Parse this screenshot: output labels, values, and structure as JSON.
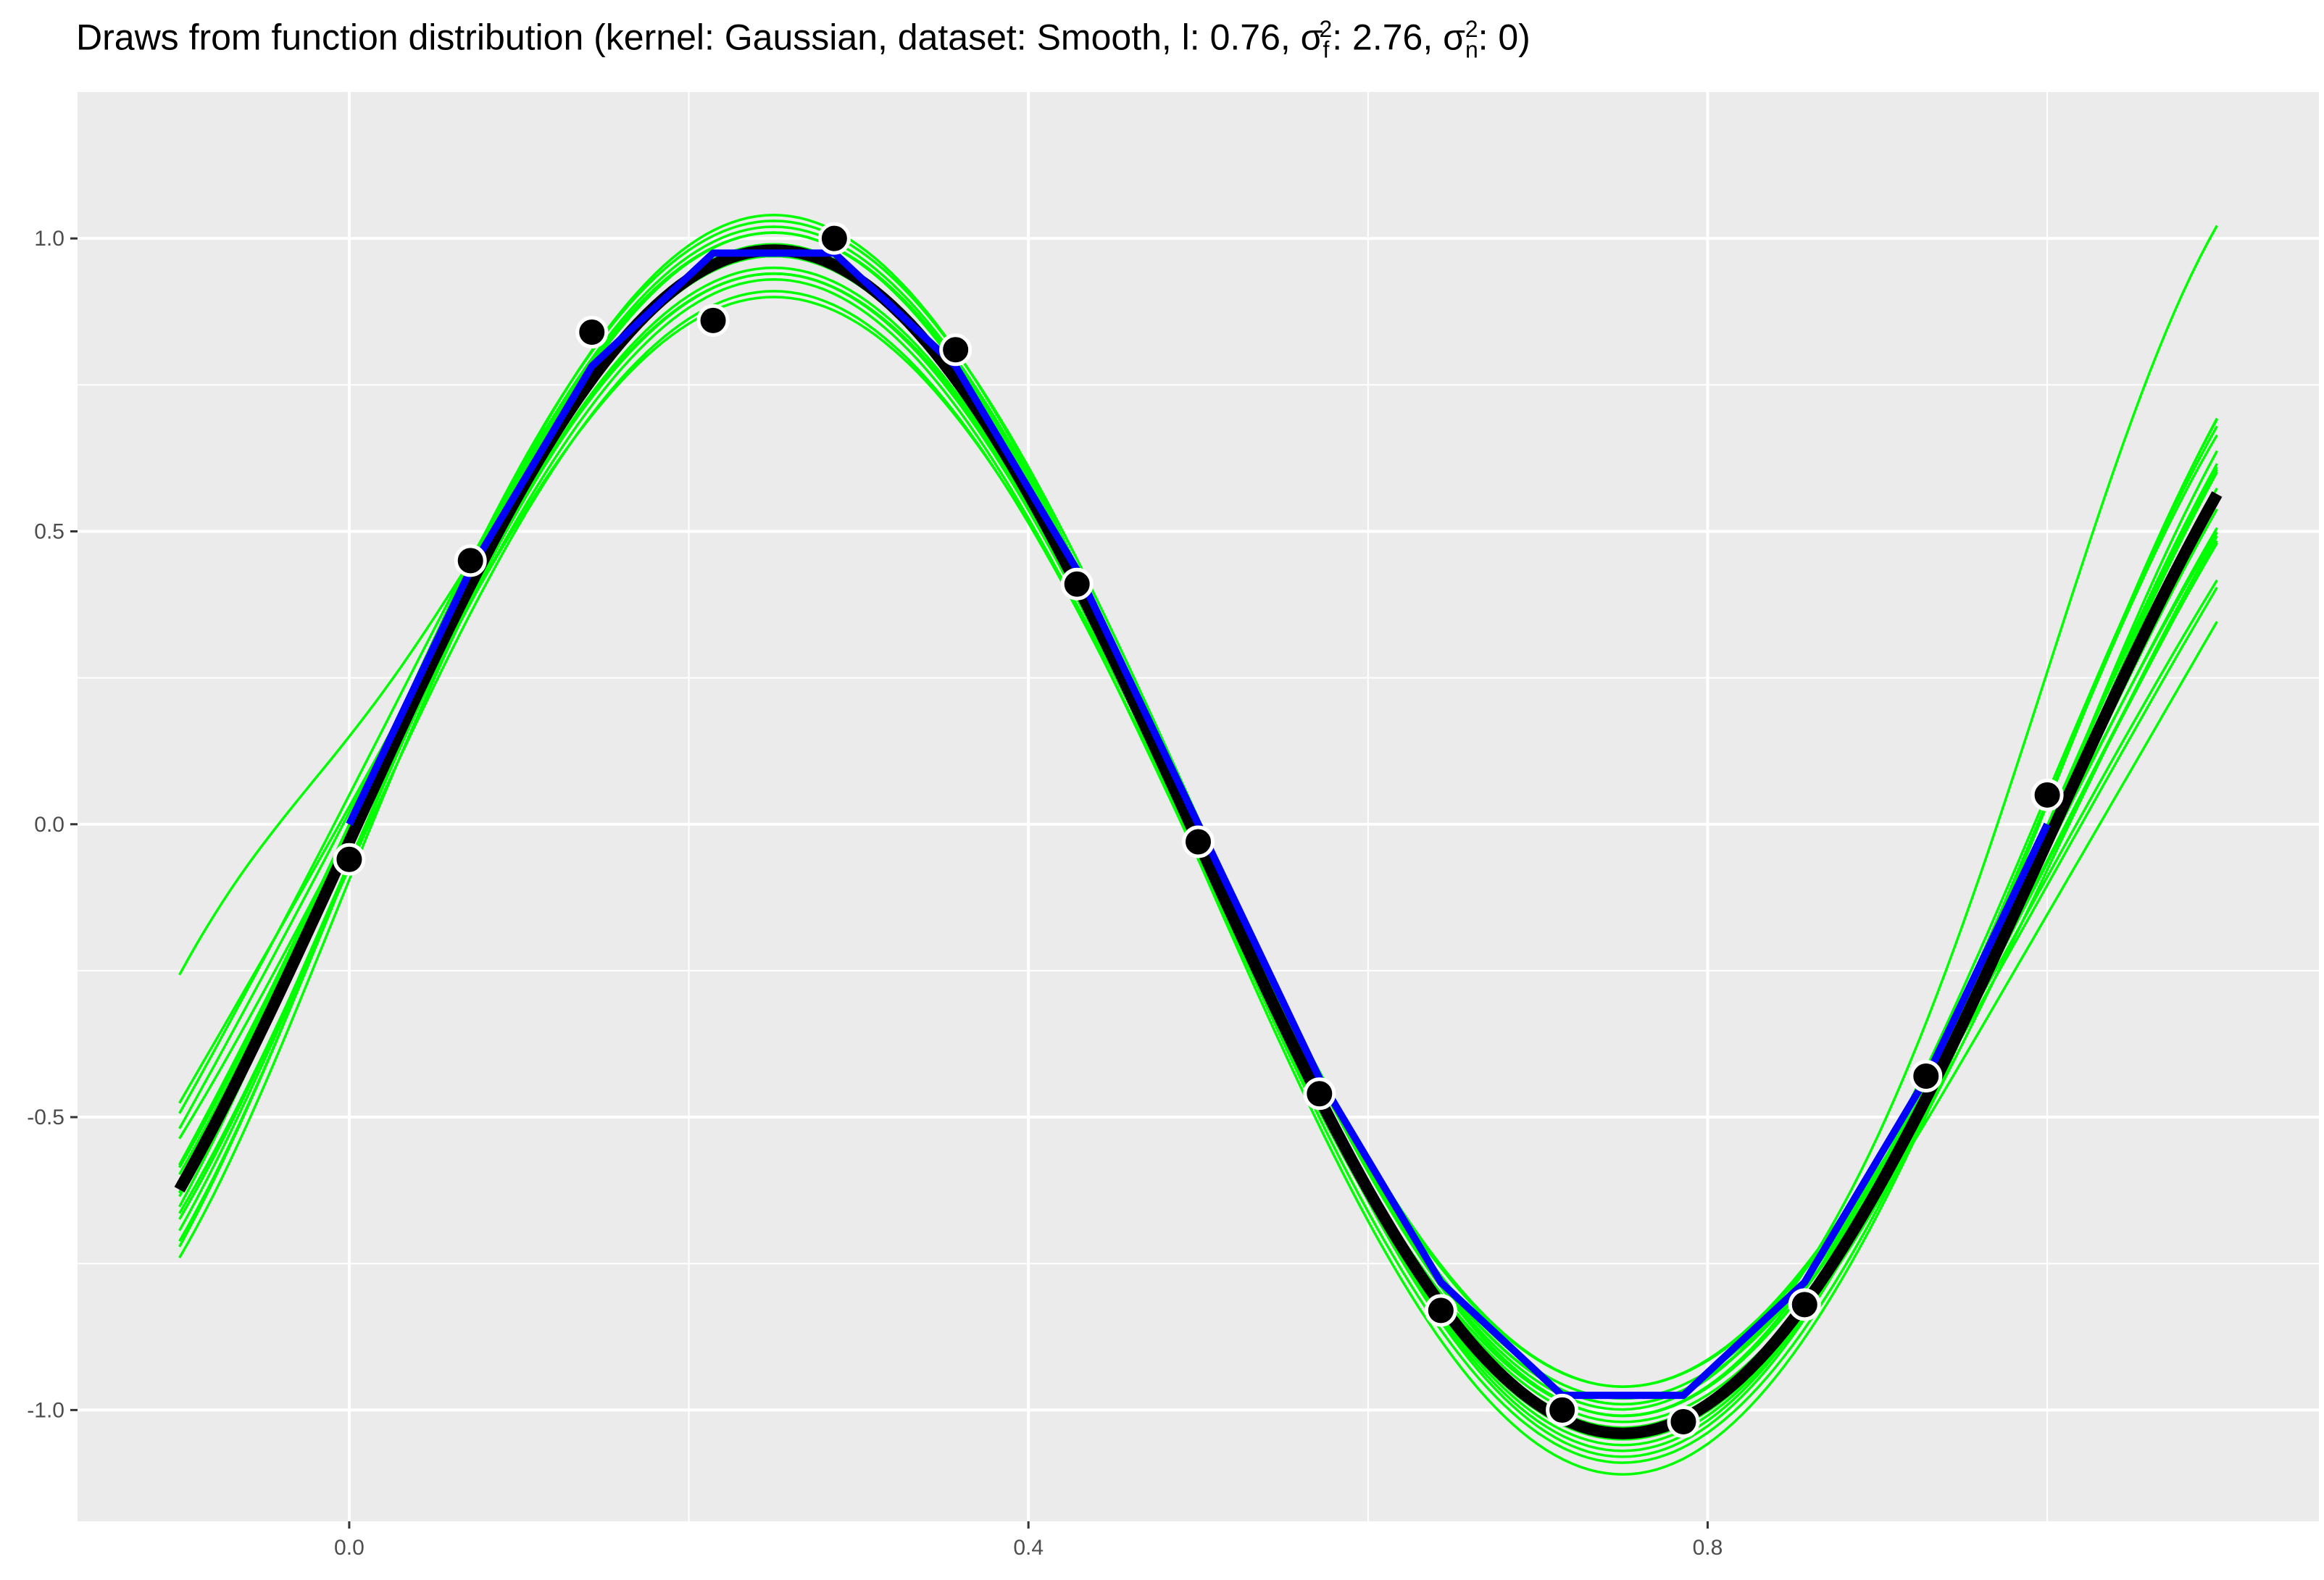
{
  "chart_data": {
    "type": "line",
    "title": "Draws from function distribution (kernel: Gaussian, dataset: Smooth, l: 0.76, σ_f^2: 2.76, σ_n^2: 0)",
    "title_parts": {
      "prefix": "Draws from function distribution (kernel: Gaussian, dataset: Smooth, l: 0.76, σ",
      "sigma_f_sub": "f",
      "sigma_f_sup": "2",
      "mid": ": 2.76, σ",
      "sigma_n_sub": "n",
      "sigma_n_sup": "2",
      "suffix": ": 0)"
    },
    "xlabel": "",
    "ylabel": "",
    "xlim": [
      -0.16,
      1.16
    ],
    "ylim": [
      -1.19,
      1.25
    ],
    "x_ticks": [
      0.0,
      0.4,
      0.8
    ],
    "x_tick_labels": [
      "0.0",
      "0.4",
      "0.8"
    ],
    "x_minor_ticks": [
      -0.2,
      0.2,
      0.6,
      1.0
    ],
    "y_ticks": [
      -1.0,
      -0.5,
      0.0,
      0.5,
      1.0
    ],
    "y_tick_labels": [
      "-1.0",
      "-0.5",
      "0.0",
      "0.5",
      "1.0"
    ],
    "y_minor_ticks": [
      -0.75,
      -0.25,
      0.25,
      0.75
    ],
    "grid": true,
    "legend": "none",
    "colors": {
      "panel": "#ebebeb",
      "grid_major": "#ffffff",
      "samples": "#00ff00",
      "mean": "#000000",
      "true_function": "#0000ff",
      "points": "#000000",
      "point_outline": "#ffffff"
    },
    "sample_range": [
      -0.1,
      1.1
    ],
    "mean_function": {
      "amplitude": 1.01,
      "offset": -0.03,
      "frequency": 1.0
    },
    "sample_draws": [
      {
        "dA": -0.06,
        "dB": 0.02,
        "dC": -0.06,
        "dD": -0.05
      },
      {
        "dA": 0.02,
        "dB": 0.01,
        "dC": 0.04,
        "dD": 0.03
      },
      {
        "dA": -0.03,
        "dB": -0.01,
        "dC": 0.14,
        "dD": -0.19
      },
      {
        "dA": -0.05,
        "dB": -0.02,
        "dC": -0.05,
        "dD": 0.15
      },
      {
        "dA": 0.01,
        "dB": -0.01,
        "dC": 0.12,
        "dD": 0.05
      },
      {
        "dA": -0.04,
        "dB": 0.01,
        "dC": -0.15,
        "dD": -0.07
      },
      {
        "dA": 0.03,
        "dB": 0.0,
        "dC": -0.08,
        "dD": 0.11
      },
      {
        "dA": 0.0,
        "dB": 0.03,
        "dC": 0.1,
        "dD": -0.11
      },
      {
        "dA": -0.02,
        "dB": 0.02,
        "dC": -0.12,
        "dD": 0.45
      },
      {
        "dA": 0.04,
        "dB": -0.03,
        "dC": 0.42,
        "dD": 0.08
      },
      {
        "dA": -0.01,
        "dB": 0.0,
        "dC": 0.02,
        "dD": -0.02
      },
      {
        "dA": 0.02,
        "dB": 0.02,
        "dC": -0.02,
        "dD": 0.01
      },
      {
        "dA": -0.08,
        "dB": 0.0,
        "dC": 0.04,
        "dD": -0.1
      },
      {
        "dA": 0.05,
        "dB": 0.01,
        "dC": -0.01,
        "dD": 0.09
      },
      {
        "dA": -0.02,
        "dB": -0.03,
        "dC": 0.06,
        "dD": -0.03
      },
      {
        "dA": 0.01,
        "dB": 0.04,
        "dC": -0.04,
        "dD": 0.07
      },
      {
        "dA": -0.05,
        "dB": 0.01,
        "dC": -0.09,
        "dD": -0.14
      },
      {
        "dA": 0.03,
        "dB": -0.02,
        "dC": 0.08,
        "dD": 0.04
      },
      {
        "dA": 0.0,
        "dB": -0.01,
        "dC": -0.06,
        "dD": 0.02
      },
      {
        "dA": -0.03,
        "dB": 0.02,
        "dC": 0.0,
        "dD": -0.06
      }
    ],
    "true_function_x": [
      0.0,
      0.0714,
      0.1429,
      0.2143,
      0.2857,
      0.3571,
      0.4286,
      0.5,
      0.5714,
      0.6429,
      0.7143,
      0.7857,
      0.8571,
      0.9286,
      1.0
    ],
    "true_function_y": [
      0.0,
      0.434,
      0.782,
      0.975,
      0.975,
      0.782,
      0.434,
      0.0,
      -0.434,
      -0.782,
      -0.975,
      -0.975,
      -0.782,
      -0.434,
      0.0
    ],
    "observations": {
      "x": [
        0.0,
        0.0714,
        0.1429,
        0.2143,
        0.2857,
        0.3571,
        0.4286,
        0.5,
        0.5714,
        0.6429,
        0.7143,
        0.7857,
        0.8571,
        0.9286,
        1.0
      ],
      "y": [
        -0.06,
        0.45,
        0.84,
        0.86,
        1.0,
        0.81,
        0.41,
        -0.03,
        -0.46,
        -0.83,
        -1.0,
        -1.02,
        -0.82,
        -0.43,
        0.05
      ]
    }
  }
}
